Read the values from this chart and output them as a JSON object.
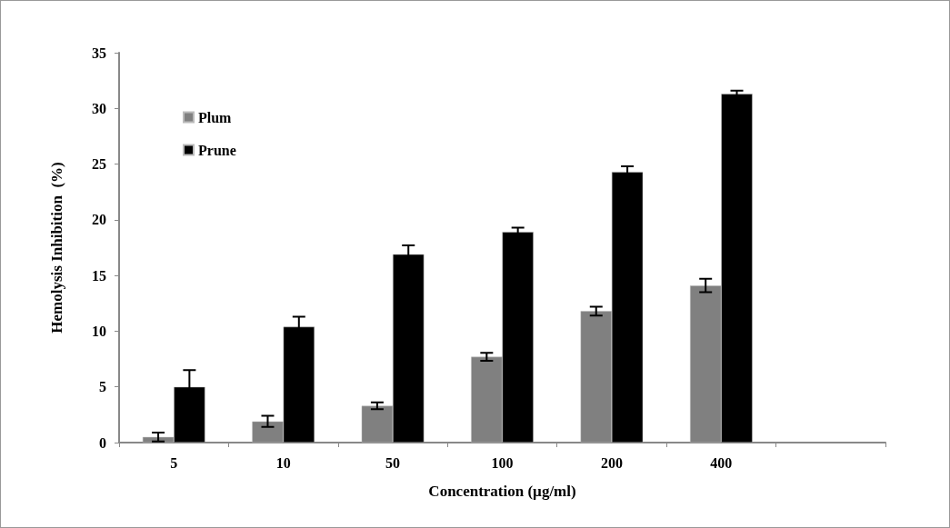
{
  "chart_data": {
    "type": "bar",
    "xlabel": "Concentration (µg/ml)",
    "ylabel": "Hemolysis Inhibition  (%)",
    "categories": [
      "5",
      "10",
      "50",
      "100",
      "200",
      "400",
      null
    ],
    "series": [
      {
        "name": "Plum",
        "color": "#808080",
        "values": [
          0.5,
          1.9,
          3.3,
          7.7,
          11.8,
          14.1,
          null
        ],
        "errors": [
          0.4,
          0.5,
          0.3,
          0.35,
          0.4,
          0.6,
          null
        ]
      },
      {
        "name": "Prune",
        "color": "#000000",
        "values": [
          5.0,
          10.4,
          16.9,
          18.9,
          24.3,
          31.3,
          null
        ],
        "errors": [
          1.5,
          0.9,
          0.8,
          0.4,
          0.5,
          0.3,
          null
        ]
      }
    ],
    "ylim": [
      0,
      35
    ],
    "yticks": [
      0,
      5,
      10,
      15,
      20,
      25,
      30,
      35
    ],
    "grid": false,
    "legend": "top left"
  }
}
